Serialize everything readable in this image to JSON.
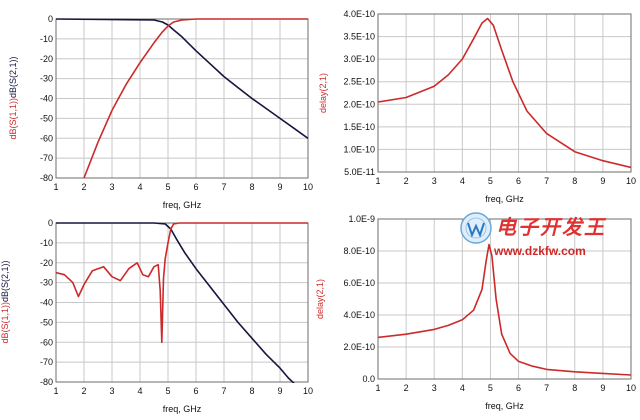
{
  "chart_data": [
    {
      "type": "line",
      "xlabel": "freq, GHz",
      "ylabel_parts": [
        "dB(S(1,1))",
        "dB(S(2,1))"
      ],
      "xlim": [
        1,
        10
      ],
      "ylim": [
        -80,
        0
      ],
      "xticks": [
        "1",
        "2",
        "3",
        "4",
        "5",
        "6",
        "7",
        "8",
        "9",
        "10"
      ],
      "yticks": [
        "0",
        "-10",
        "-20",
        "-30",
        "-40",
        "-50",
        "-60",
        "-70",
        "-80"
      ],
      "series": [
        {
          "name": "dB(S(2,1))",
          "color": "#151540",
          "x": [
            1,
            4.5,
            4.8,
            5.0,
            5.2,
            5.5,
            6,
            6.5,
            7,
            7.5,
            8,
            8.5,
            9,
            9.5,
            10
          ],
          "y": [
            0,
            -0.5,
            -1.5,
            -3,
            -5.5,
            -9,
            -16,
            -22.5,
            -29,
            -34.5,
            -40,
            -45,
            -50,
            -55,
            -60
          ]
        },
        {
          "name": "dB(S(1,1))",
          "color": "#cc2a2a",
          "x": [
            2,
            2.5,
            3,
            3.5,
            4,
            4.5,
            4.8,
            5.0,
            5.2,
            5.5,
            6,
            7,
            8,
            9,
            10
          ],
          "y": [
            -80,
            -62,
            -46,
            -33,
            -22,
            -12,
            -6.5,
            -3.5,
            -1.5,
            -0.5,
            0,
            0,
            0,
            0,
            0
          ]
        }
      ]
    },
    {
      "type": "line",
      "xlabel": "freq, GHz",
      "ylabel_parts": [
        "delay(2,1)"
      ],
      "xlim": [
        1,
        10
      ],
      "ylim": [
        5e-11,
        4e-10
      ],
      "xticks": [
        "1",
        "2",
        "3",
        "4",
        "5",
        "6",
        "7",
        "8",
        "9",
        "10"
      ],
      "yticks": [
        "4.0E-10",
        "3.5E-10",
        "3.0E-10",
        "2.5E-10",
        "2.0E-10",
        "1.5E-10",
        "1.0E-10",
        "5.0E-11"
      ],
      "series": [
        {
          "name": "delay(2,1)",
          "color": "#cc2a2a",
          "x": [
            1,
            2,
            3,
            3.5,
            4,
            4.4,
            4.7,
            4.9,
            5.1,
            5.4,
            5.8,
            6.3,
            7,
            8,
            9,
            10
          ],
          "y": [
            2.05e-10,
            2.15e-10,
            2.4e-10,
            2.65e-10,
            3e-10,
            3.45e-10,
            3.8e-10,
            3.9e-10,
            3.75e-10,
            3.2e-10,
            2.5e-10,
            1.85e-10,
            1.35e-10,
            9.5e-11,
            7.5e-11,
            6e-11
          ]
        }
      ]
    },
    {
      "type": "line",
      "xlabel": "freq, GHz",
      "ylabel_parts": [
        "dB(S(1,1))",
        "dB(S(2,1))"
      ],
      "xlim": [
        1,
        10
      ],
      "ylim": [
        -80,
        0
      ],
      "xticks": [
        "1",
        "2",
        "3",
        "4",
        "5",
        "6",
        "7",
        "8",
        "9",
        "10"
      ],
      "yticks": [
        "0",
        "-10",
        "-20",
        "-30",
        "-40",
        "-50",
        "-60",
        "-70",
        "-80"
      ],
      "series": [
        {
          "name": "dB(S(2,1))",
          "color": "#151540",
          "x": [
            1,
            4.5,
            4.9,
            5.1,
            5.3,
            5.6,
            6,
            6.5,
            7,
            7.5,
            8,
            8.5,
            9,
            9.3,
            9.6
          ],
          "y": [
            0,
            0,
            -0.5,
            -3,
            -8,
            -15,
            -23,
            -32,
            -41,
            -50,
            -58,
            -66,
            -73,
            -78,
            -82
          ]
        },
        {
          "name": "dB(S(1,1))",
          "color": "#cc2a2a",
          "x": [
            1,
            1.3,
            1.6,
            1.8,
            2.0,
            2.3,
            2.7,
            3.0,
            3.3,
            3.6,
            3.9,
            4.1,
            4.3,
            4.5,
            4.65,
            4.72,
            4.78,
            4.84,
            4.9,
            5.0,
            5.1,
            5.2,
            5.4,
            6,
            7,
            8,
            9,
            10
          ],
          "y": [
            -25,
            -26,
            -30,
            -37,
            -31,
            -24,
            -22,
            -27,
            -29,
            -23,
            -20,
            -26,
            -27,
            -22,
            -21,
            -34,
            -60,
            -28,
            -18,
            -10,
            -3,
            -0.5,
            0,
            0,
            0,
            0,
            0,
            0
          ]
        }
      ]
    },
    {
      "type": "line",
      "xlabel": "freq, GHz",
      "ylabel_parts": [
        "delay(2,1)"
      ],
      "xlim": [
        1,
        10
      ],
      "ylim": [
        0,
        1e-09
      ],
      "xticks": [
        "1",
        "2",
        "3",
        "4",
        "5",
        "6",
        "7",
        "8",
        "9",
        "10"
      ],
      "yticks": [
        "1.0E-9",
        "8.0E-10",
        "6.0E-10",
        "4.0E-10",
        "2.0E-10",
        "0.0"
      ],
      "series": [
        {
          "name": "delay(2,1)",
          "color": "#cc2a2a",
          "x": [
            1,
            2,
            3,
            3.5,
            4,
            4.4,
            4.7,
            4.85,
            4.95,
            5.05,
            5.2,
            5.4,
            5.7,
            6,
            6.5,
            7,
            8,
            9,
            10
          ],
          "y": [
            2.6e-10,
            2.8e-10,
            3.1e-10,
            3.35e-10,
            3.7e-10,
            4.3e-10,
            5.6e-10,
            7.4e-10,
            8.4e-10,
            7.7e-10,
            5e-10,
            2.8e-10,
            1.6e-10,
            1.1e-10,
            8e-11,
            6e-11,
            4.5e-11,
            3.5e-11,
            2.5e-11
          ]
        }
      ]
    }
  ],
  "watermark": {
    "chinese": "电子开发王",
    "url": "www.dzkfw.com"
  }
}
